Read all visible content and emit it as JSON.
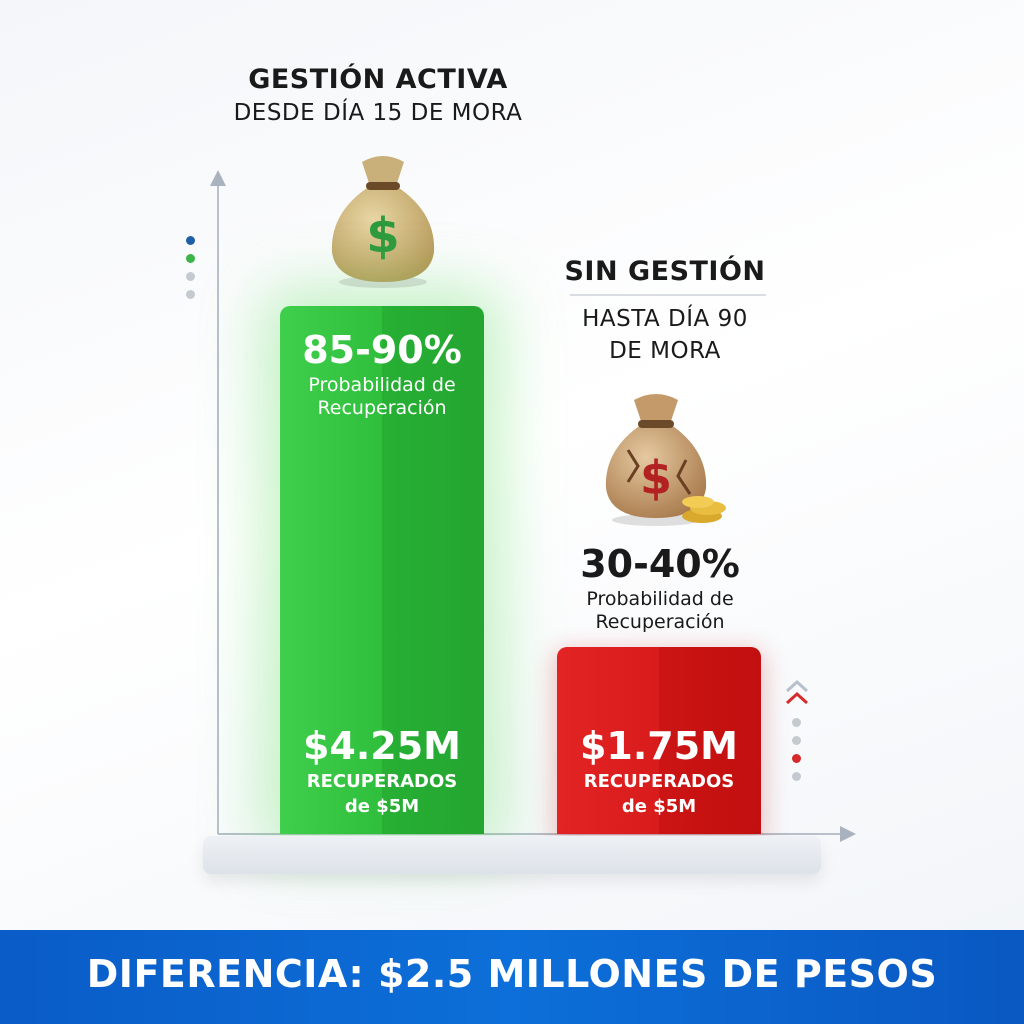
{
  "colors": {
    "green_bar": "#2fbf3c",
    "red_bar": "#d81b1b",
    "footer_bg": "#0d6fd9",
    "dot_blue": "#1f5fa8",
    "dot_green": "#3cb44a",
    "dot_red": "#d62b2b",
    "dot_gray": "#c5cad1"
  },
  "left": {
    "title": "GESTIÓN ACTIVA",
    "subtitle": "DESDE DÍA 15 DE MORA",
    "icon": "money-bag-icon",
    "percent": "85-90%",
    "percent_label_1": "Probabilidad de",
    "percent_label_2": "Recuperación",
    "amount": "$4.25M",
    "amount_label_1": "RECUPERADOS",
    "amount_label_2": "de $5M"
  },
  "right": {
    "title": "SIN GESTIÓN",
    "subtitle_1": "HASTA DÍA 90",
    "subtitle_2": "DE MORA",
    "icon": "cracked-money-bag-icon",
    "percent": "30-40%",
    "percent_label_1": "Probabilidad de",
    "percent_label_2": "Recuperación",
    "amount": "$1.75M",
    "amount_label_1": "RECUPERADOS",
    "amount_label_2": "de $5M"
  },
  "footer": {
    "text": "DIFERENCIA: $2.5 MILLONES DE PESOS"
  },
  "chart_data": {
    "type": "bar",
    "categories": [
      "GESTIÓN ACTIVA",
      "SIN GESTIÓN"
    ],
    "values": [
      4.25,
      1.75
    ],
    "units": "M",
    "ylim": [
      0,
      5
    ],
    "grid": false,
    "legend": "none"
  }
}
